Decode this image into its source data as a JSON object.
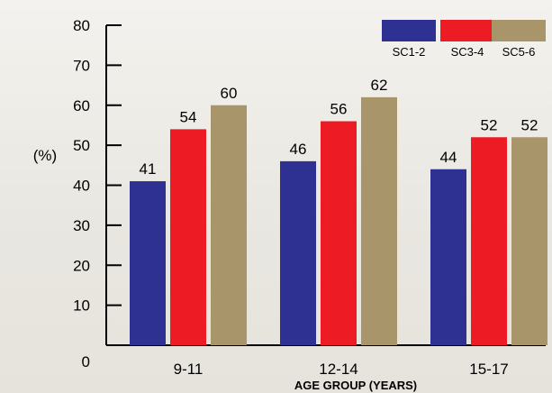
{
  "chart_data": {
    "type": "bar",
    "title": "",
    "xlabel": "AGE GROUP (YEARS)",
    "ylabel": "(%)",
    "ylim": [
      0,
      80
    ],
    "yticks": [
      0,
      10,
      20,
      30,
      40,
      50,
      60,
      70,
      80
    ],
    "categories": [
      "9-11",
      "12-14",
      "15-17"
    ],
    "series": [
      {
        "name": "SC1-2",
        "color": "#2e3192",
        "values": [
          41,
          46,
          44
        ]
      },
      {
        "name": "SC3-4",
        "color": "#ed1c24",
        "values": [
          54,
          56,
          52
        ]
      },
      {
        "name": "SC5-6",
        "color": "#a8956a",
        "values": [
          60,
          62,
          52
        ]
      }
    ],
    "legend_position": "top-right",
    "grid": false
  }
}
